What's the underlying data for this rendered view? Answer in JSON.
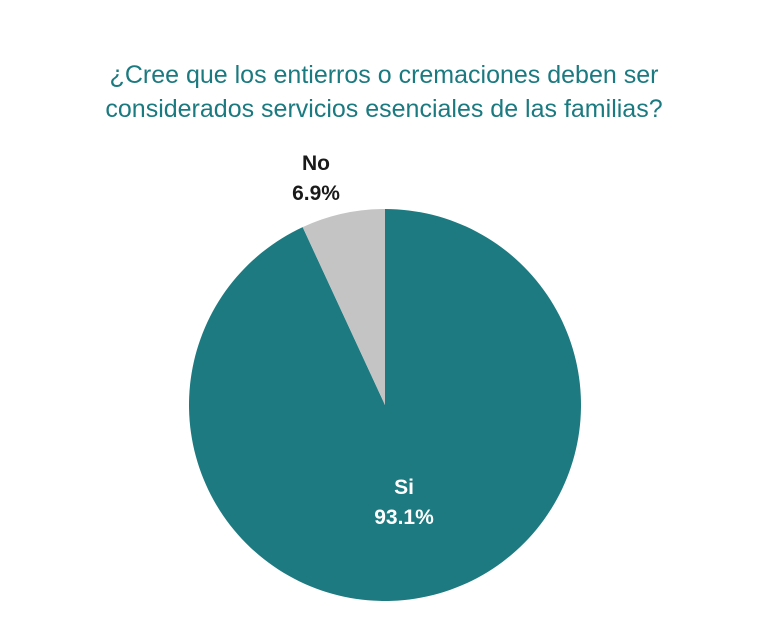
{
  "chart_data": {
    "type": "pie",
    "title_lines": [
      "¿Cree que los entierros o cremaciones deben ser",
      "considerados servicios esenciales de las familias?"
    ],
    "slices": [
      {
        "label": "Si",
        "value": 93.1,
        "value_label": "93.1%",
        "color": "#1c7a80",
        "label_color": "#ffffff"
      },
      {
        "label": "No",
        "value": 6.9,
        "value_label": "6.9%",
        "color": "#c4c4c4",
        "label_color": "#1a1a1a"
      }
    ],
    "legend": "none"
  }
}
